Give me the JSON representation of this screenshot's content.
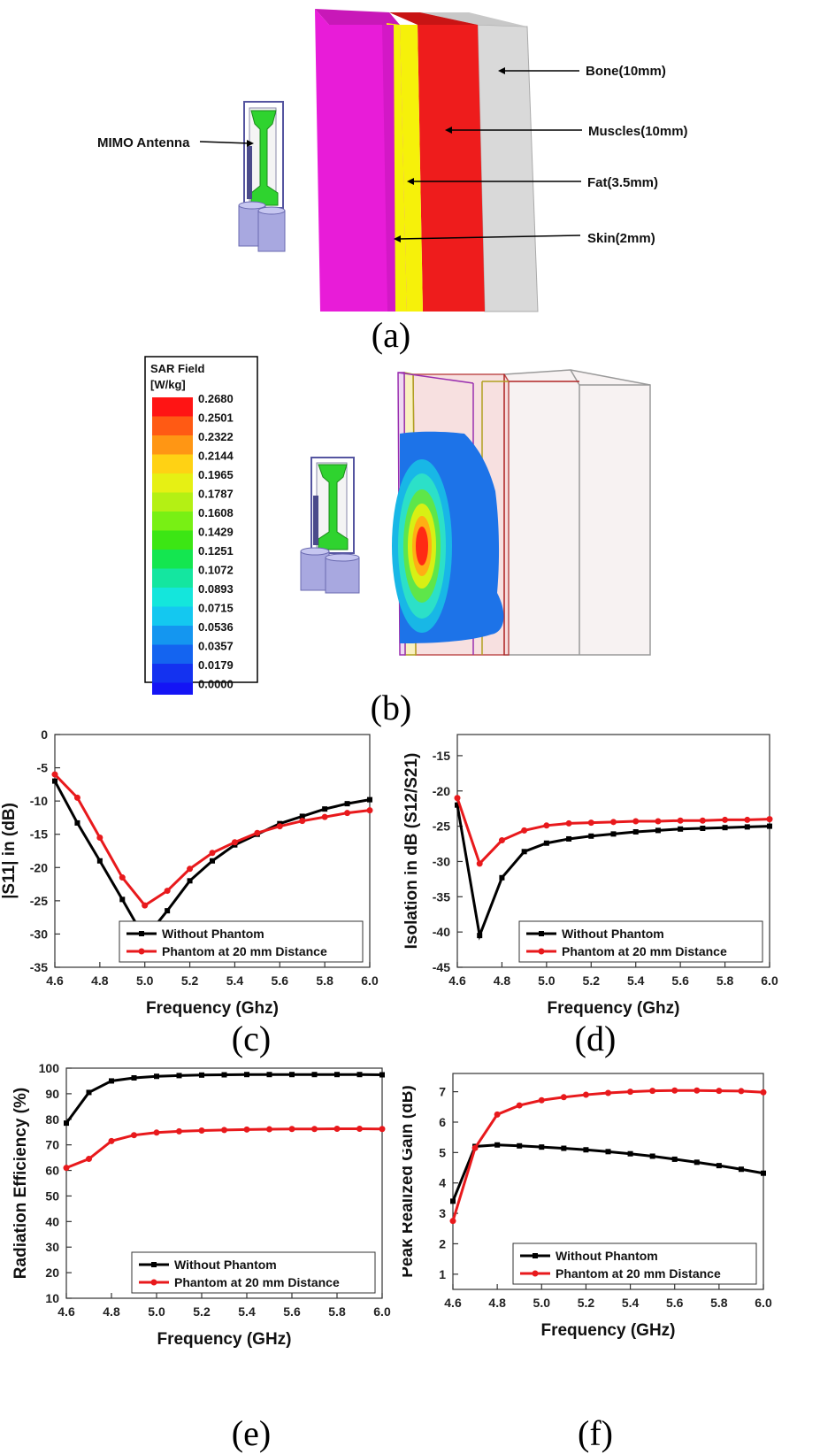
{
  "figure_a": {
    "label": "(a)",
    "antenna_label": "MIMO Antenna",
    "layers": [
      {
        "name": "Bone(10mm)",
        "color": "#d9d9d9"
      },
      {
        "name": "Muscles(10mm)",
        "color": "#ee1c1c"
      },
      {
        "name": "Fat(3.5mm)",
        "color": "#f6f10a"
      },
      {
        "name": "Skin(2mm)",
        "color": "#e81cd8"
      }
    ]
  },
  "figure_b": {
    "label": "(b)",
    "legend_title_1": "SAR Field",
    "legend_title_2": "[W/kg]",
    "scale_values": [
      "0.2680",
      "0.2501",
      "0.2322",
      "0.2144",
      "0.1965",
      "0.1787",
      "0.1608",
      "0.1429",
      "0.1251",
      "0.1072",
      "0.0893",
      "0.0715",
      "0.0536",
      "0.0357",
      "0.0179",
      "0.0000"
    ],
    "scale_colors": [
      "#ff1414",
      "#ff5a14",
      "#ff9614",
      "#ffd214",
      "#e6f014",
      "#b4f014",
      "#78f014",
      "#3ce614",
      "#14e650",
      "#14e6a0",
      "#14e6dc",
      "#14c8f0",
      "#1496f0",
      "#1464f0",
      "#1432f0",
      "#1414f5"
    ]
  },
  "chart_data": [
    {
      "panel": "(c)",
      "type": "line",
      "xlabel": "Frequency (Ghz)",
      "ylabel": "|S11| in (dB)",
      "xlim": [
        4.6,
        6.0
      ],
      "ylim": [
        -35,
        0
      ],
      "xticks": [
        "4.6",
        "4.8",
        "5.0",
        "5.2",
        "5.4",
        "5.6",
        "5.8",
        "6.0"
      ],
      "yticks": [
        "0",
        "-5",
        "-10",
        "-15",
        "-20",
        "-25",
        "-30",
        "-35"
      ],
      "legend": "bottom-right",
      "series": [
        {
          "name": "Without Phantom",
          "color": "#000000",
          "x": [
            4.6,
            4.7,
            4.8,
            4.9,
            5.0,
            5.1,
            5.2,
            5.3,
            5.4,
            5.5,
            5.6,
            5.7,
            5.8,
            5.9,
            6.0
          ],
          "y": [
            -7,
            -13.3,
            -19,
            -24.8,
            -30.7,
            -26.5,
            -22,
            -19,
            -16.6,
            -15,
            -13.4,
            -12.3,
            -11.2,
            -10.4,
            -9.8
          ]
        },
        {
          "name": "Phantom at 20 mm Distance",
          "color": "#e8191c",
          "x": [
            4.6,
            4.7,
            4.8,
            4.9,
            5.0,
            5.1,
            5.2,
            5.3,
            5.4,
            5.5,
            5.6,
            5.7,
            5.8,
            5.9,
            6.0
          ],
          "y": [
            -6,
            -9.5,
            -15.5,
            -21.5,
            -25.7,
            -23.5,
            -20.2,
            -17.8,
            -16.2,
            -14.8,
            -13.8,
            -13,
            -12.4,
            -11.8,
            -11.4
          ]
        }
      ]
    },
    {
      "panel": "(d)",
      "type": "line",
      "xlabel": "Frequency (Ghz)",
      "ylabel": "Isolation in dB (S12/S21)",
      "xlim": [
        4.6,
        6.0
      ],
      "ylim": [
        -45,
        -12
      ],
      "xticks": [
        "4.6",
        "4.8",
        "5.0",
        "5.2",
        "5.4",
        "5.6",
        "5.8",
        "6.0"
      ],
      "yticks": [
        "-15",
        "-20",
        "-25",
        "-30",
        "-35",
        "-40",
        "-45"
      ],
      "legend": "bottom-right",
      "series": [
        {
          "name": "Without Phantom",
          "color": "#000000",
          "x": [
            4.6,
            4.7,
            4.8,
            4.9,
            5.0,
            5.1,
            5.2,
            5.3,
            5.4,
            5.5,
            5.6,
            5.7,
            5.8,
            5.9,
            6.0
          ],
          "y": [
            -22,
            -40.5,
            -32.3,
            -28.6,
            -27.4,
            -26.8,
            -26.4,
            -26.1,
            -25.8,
            -25.6,
            -25.4,
            -25.3,
            -25.2,
            -25.1,
            -25
          ]
        },
        {
          "name": "Phantom at 20 mm Distance",
          "color": "#e8191c",
          "x": [
            4.6,
            4.7,
            4.8,
            4.9,
            5.0,
            5.1,
            5.2,
            5.3,
            5.4,
            5.5,
            5.6,
            5.7,
            5.8,
            5.9,
            6.0
          ],
          "y": [
            -21,
            -30.3,
            -27,
            -25.6,
            -24.9,
            -24.6,
            -24.5,
            -24.4,
            -24.3,
            -24.3,
            -24.2,
            -24.2,
            -24.1,
            -24.1,
            -24
          ]
        }
      ]
    },
    {
      "panel": "(e)",
      "type": "line",
      "xlabel": "Frequency (GHz)",
      "ylabel": "Radiation Efficiency (%)",
      "xlim": [
        4.6,
        6.0
      ],
      "ylim": [
        10,
        100
      ],
      "xticks": [
        "4.6",
        "4.8",
        "5.0",
        "5.2",
        "5.4",
        "5.6",
        "5.8",
        "6.0"
      ],
      "yticks": [
        "100",
        "90",
        "80",
        "70",
        "60",
        "50",
        "40",
        "30",
        "20",
        "10"
      ],
      "legend": "bottom-right",
      "series": [
        {
          "name": "Without Phantom",
          "color": "#000000",
          "x": [
            4.6,
            4.7,
            4.8,
            4.9,
            5.0,
            5.1,
            5.2,
            5.3,
            5.4,
            5.5,
            5.6,
            5.7,
            5.8,
            5.9,
            6.0
          ],
          "y": [
            78.5,
            90.5,
            95,
            96.2,
            96.8,
            97.1,
            97.3,
            97.4,
            97.5,
            97.5,
            97.5,
            97.5,
            97.5,
            97.5,
            97.4
          ]
        },
        {
          "name": "Phantom at 20 mm Distance",
          "color": "#e8191c",
          "x": [
            4.6,
            4.7,
            4.8,
            4.9,
            5.0,
            5.1,
            5.2,
            5.3,
            5.4,
            5.5,
            5.6,
            5.7,
            5.8,
            5.9,
            6.0
          ],
          "y": [
            61,
            64.5,
            71.5,
            73.8,
            74.8,
            75.3,
            75.6,
            75.8,
            76,
            76.1,
            76.2,
            76.2,
            76.3,
            76.3,
            76.2
          ]
        }
      ]
    },
    {
      "panel": "(f)",
      "type": "line",
      "xlabel": "Frequency (GHz)",
      "ylabel": "Peak Realized Gain (dB)",
      "xlim": [
        4.6,
        6.0
      ],
      "ylim": [
        0.5,
        7.6
      ],
      "xticks": [
        "4.6",
        "4.8",
        "5.0",
        "5.2",
        "5.4",
        "5.6",
        "5.8",
        "6.0"
      ],
      "yticks": [
        "7",
        "6",
        "5",
        "4",
        "3",
        "2",
        "1"
      ],
      "legend": "bottom-right",
      "series": [
        {
          "name": "Without Phantom",
          "color": "#000000",
          "x": [
            4.6,
            4.7,
            4.8,
            4.9,
            5.0,
            5.1,
            5.2,
            5.3,
            5.4,
            5.5,
            5.6,
            5.7,
            5.8,
            5.9,
            6.0
          ],
          "y": [
            3.4,
            5.2,
            5.25,
            5.22,
            5.18,
            5.14,
            5.09,
            5.03,
            4.96,
            4.88,
            4.78,
            4.68,
            4.57,
            4.45,
            4.32
          ]
        },
        {
          "name": "Phantom at 20 mm Distance",
          "color": "#e8191c",
          "x": [
            4.6,
            4.7,
            4.8,
            4.9,
            5.0,
            5.1,
            5.2,
            5.3,
            5.4,
            5.5,
            5.6,
            5.7,
            5.8,
            5.9,
            6.0
          ],
          "y": [
            2.75,
            5.15,
            6.25,
            6.55,
            6.72,
            6.82,
            6.9,
            6.96,
            7.0,
            7.03,
            7.04,
            7.04,
            7.03,
            7.02,
            6.98
          ]
        }
      ]
    }
  ]
}
